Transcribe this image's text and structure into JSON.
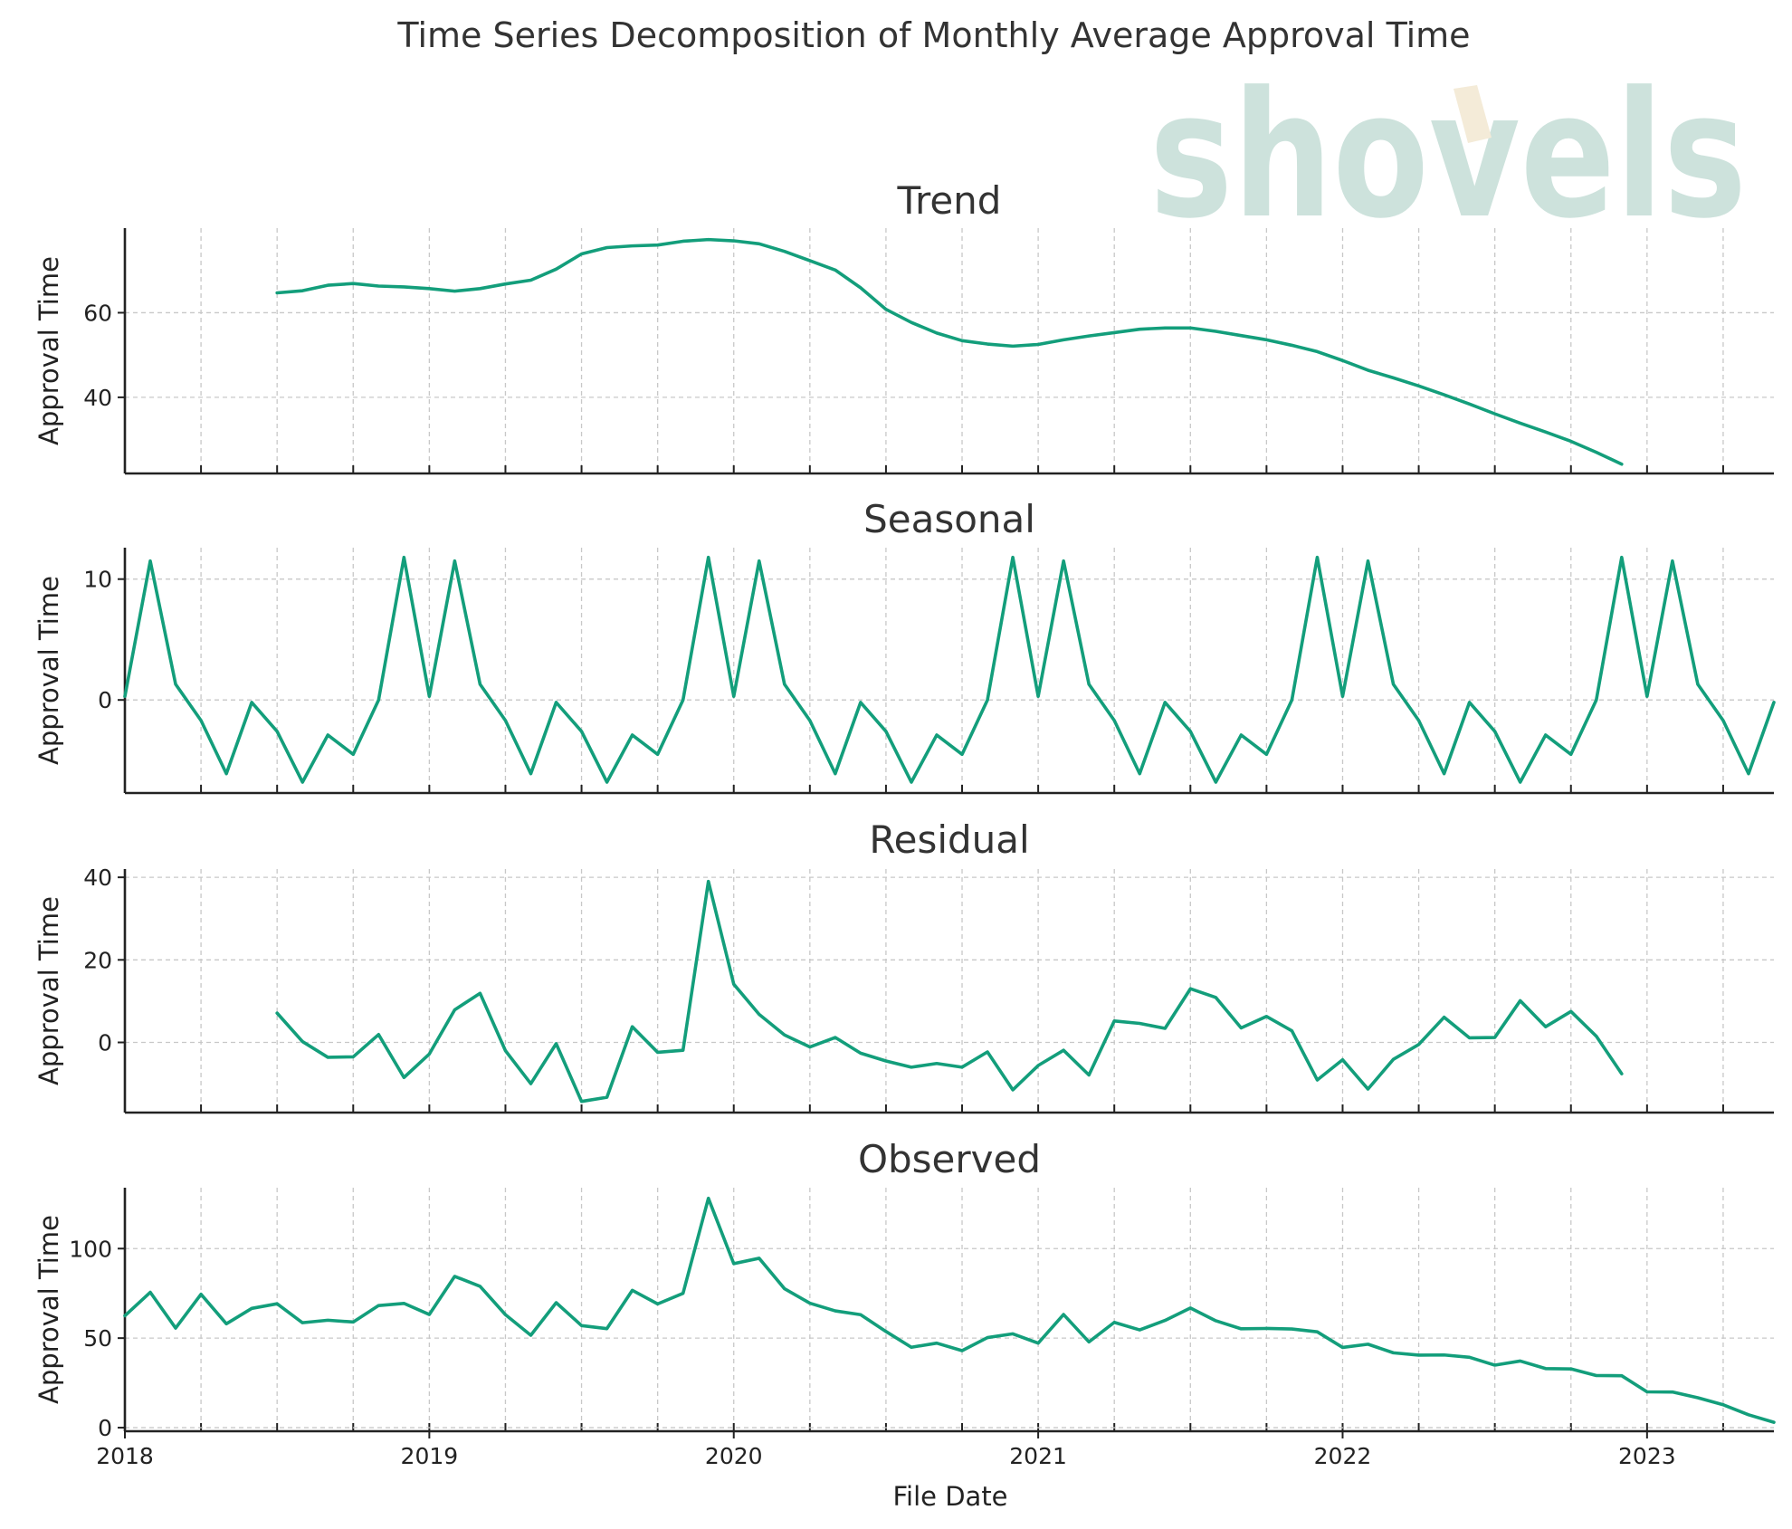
{
  "chart_data": {
    "type": "line",
    "title": "Time Series Decomposition of Monthly Average Approval Time",
    "xlabel": "File Date",
    "ylabel": "Approval Time",
    "line_color": "#139e7b",
    "watermark": {
      "text": "shovels",
      "color": "#cde2dc",
      "accent_color": "#f4ebd8"
    },
    "x_start": "2018-01",
    "xlim": [
      "2018-01",
      "2023-06"
    ],
    "x_ticks": [
      "2018",
      "2019",
      "2020",
      "2021",
      "2022",
      "2023"
    ],
    "grid": true,
    "panels": [
      {
        "title": "Trend",
        "ylabel": "Approval Time",
        "ylim": [
          22,
          80
        ],
        "yticks": [
          "40",
          "60"
        ],
        "x": [
          "2018-07",
          "2018-08",
          "2018-09",
          "2018-10",
          "2018-11",
          "2018-12",
          "2019-01",
          "2019-02",
          "2019-03",
          "2019-04",
          "2019-05",
          "2019-06",
          "2019-07",
          "2019-08",
          "2019-09",
          "2019-10",
          "2019-11",
          "2019-12",
          "2020-01",
          "2020-02",
          "2020-03",
          "2020-04",
          "2020-05",
          "2020-06",
          "2020-07",
          "2020-08",
          "2020-09",
          "2020-10",
          "2020-11",
          "2020-12",
          "2021-01",
          "2021-02",
          "2021-03",
          "2021-04",
          "2021-05",
          "2021-06",
          "2021-07",
          "2021-08",
          "2021-09",
          "2021-10",
          "2021-11",
          "2021-12",
          "2022-01",
          "2022-02",
          "2022-03",
          "2022-04",
          "2022-05",
          "2022-06",
          "2022-07",
          "2022-08",
          "2022-09",
          "2022-10",
          "2022-11",
          "2022-12"
        ],
        "values": [
          64.7,
          65.2,
          66.5,
          66.9,
          66.3,
          66.1,
          65.7,
          65.1,
          65.7,
          66.8,
          67.7,
          70.3,
          73.9,
          75.4,
          75.8,
          76.0,
          76.9,
          77.3,
          77.0,
          76.3,
          74.5,
          72.3,
          70.1,
          65.9,
          60.8,
          57.7,
          55.2,
          53.4,
          52.6,
          52.1,
          52.5,
          53.6,
          54.5,
          55.3,
          56.1,
          56.4,
          56.4,
          55.6,
          54.6,
          53.6,
          52.3,
          50.8,
          48.7,
          46.4,
          44.6,
          42.7,
          40.6,
          38.4,
          36.1,
          33.9,
          31.8,
          29.6,
          27.0,
          24.2
        ]
      },
      {
        "title": "Seasonal",
        "ylabel": "Approval Time",
        "ylim": [
          -7.7,
          12.6
        ],
        "yticks": [
          "0",
          "10"
        ],
        "x": [
          "2018-01",
          "2018-02",
          "2018-03",
          "2018-04",
          "2018-05",
          "2018-06",
          "2018-07",
          "2018-08",
          "2018-09",
          "2018-10",
          "2018-11",
          "2018-12",
          "2019-01",
          "2019-02",
          "2019-03",
          "2019-04",
          "2019-05",
          "2019-06",
          "2019-07",
          "2019-08",
          "2019-09",
          "2019-10",
          "2019-11",
          "2019-12",
          "2020-01",
          "2020-02",
          "2020-03",
          "2020-04",
          "2020-05",
          "2020-06",
          "2020-07",
          "2020-08",
          "2020-09",
          "2020-10",
          "2020-11",
          "2020-12",
          "2021-01",
          "2021-02",
          "2021-03",
          "2021-04",
          "2021-05",
          "2021-06",
          "2021-07",
          "2021-08",
          "2021-09",
          "2021-10",
          "2021-11",
          "2021-12",
          "2022-01",
          "2022-02",
          "2022-03",
          "2022-04",
          "2022-05",
          "2022-06",
          "2022-07",
          "2022-08",
          "2022-09",
          "2022-10",
          "2022-11",
          "2022-12",
          "2023-01",
          "2023-02",
          "2023-03",
          "2023-04",
          "2023-05",
          "2023-06"
        ],
        "values": [
          0.3,
          11.5,
          1.3,
          -1.7,
          -6.1,
          -0.2,
          -2.6,
          -6.8,
          -2.9,
          -4.5,
          0.0,
          11.8,
          0.3,
          11.5,
          1.3,
          -1.7,
          -6.1,
          -0.2,
          -2.6,
          -6.8,
          -2.9,
          -4.5,
          0.0,
          11.8,
          0.3,
          11.5,
          1.3,
          -1.7,
          -6.1,
          -0.2,
          -2.6,
          -6.8,
          -2.9,
          -4.5,
          0.0,
          11.8,
          0.3,
          11.5,
          1.3,
          -1.7,
          -6.1,
          -0.2,
          -2.6,
          -6.8,
          -2.9,
          -4.5,
          0.0,
          11.8,
          0.3,
          11.5,
          1.3,
          -1.7,
          -6.1,
          -0.2,
          -2.6,
          -6.8,
          -2.9,
          -4.5,
          0.0,
          11.8,
          0.3,
          11.5,
          1.3,
          -1.7,
          -6.1,
          -0.2
        ]
      },
      {
        "title": "Residual",
        "ylabel": "Approval Time",
        "ylim": [
          -17,
          42
        ],
        "yticks": [
          "0",
          "20",
          "40"
        ],
        "x": [
          "2018-07",
          "2018-08",
          "2018-09",
          "2018-10",
          "2018-11",
          "2018-12",
          "2019-01",
          "2019-02",
          "2019-03",
          "2019-04",
          "2019-05",
          "2019-06",
          "2019-07",
          "2019-08",
          "2019-09",
          "2019-10",
          "2019-11",
          "2019-12",
          "2020-01",
          "2020-02",
          "2020-03",
          "2020-04",
          "2020-05",
          "2020-06",
          "2020-07",
          "2020-08",
          "2020-09",
          "2020-10",
          "2020-11",
          "2020-12",
          "2021-01",
          "2021-02",
          "2021-03",
          "2021-04",
          "2021-05",
          "2021-06",
          "2021-07",
          "2021-08",
          "2021-09",
          "2021-10",
          "2021-11",
          "2021-12",
          "2022-01",
          "2022-02",
          "2022-03",
          "2022-04",
          "2022-05",
          "2022-06",
          "2022-07",
          "2022-08",
          "2022-09",
          "2022-10",
          "2022-11",
          "2022-12"
        ],
        "values": [
          7.1,
          0.2,
          -3.6,
          -3.5,
          1.9,
          -8.5,
          -2.8,
          7.9,
          11.9,
          -2.0,
          -10.0,
          -0.3,
          -14.3,
          -13.3,
          3.8,
          -2.4,
          -1.9,
          39.0,
          14.1,
          6.8,
          1.8,
          -1.1,
          1.2,
          -2.6,
          -4.5,
          -6.0,
          -5.1,
          -6.0,
          -2.3,
          -11.5,
          -5.6,
          -1.9,
          -7.9,
          5.2,
          4.6,
          3.4,
          13.0,
          10.9,
          3.5,
          6.3,
          2.8,
          -9.1,
          -4.2,
          -11.3,
          -4.1,
          -0.5,
          6.1,
          1.1,
          1.2,
          10.1,
          3.8,
          7.5,
          1.5,
          -7.6
        ]
      },
      {
        "title": "Observed",
        "ylabel": "Approval Time",
        "ylim": [
          -2,
          134
        ],
        "yticks": [
          "0",
          "50",
          "100"
        ],
        "x": [
          "2018-01",
          "2018-02",
          "2018-03",
          "2018-04",
          "2018-05",
          "2018-06",
          "2018-07",
          "2018-08",
          "2018-09",
          "2018-10",
          "2018-11",
          "2018-12",
          "2019-01",
          "2019-02",
          "2019-03",
          "2019-04",
          "2019-05",
          "2019-06",
          "2019-07",
          "2019-08",
          "2019-09",
          "2019-10",
          "2019-11",
          "2019-12",
          "2020-01",
          "2020-02",
          "2020-03",
          "2020-04",
          "2020-05",
          "2020-06",
          "2020-07",
          "2020-08",
          "2020-09",
          "2020-10",
          "2020-11",
          "2020-12",
          "2021-01",
          "2021-02",
          "2021-03",
          "2021-04",
          "2021-05",
          "2021-06",
          "2021-07",
          "2021-08",
          "2021-09",
          "2021-10",
          "2021-11",
          "2021-12",
          "2022-01",
          "2022-02",
          "2022-03",
          "2022-04",
          "2022-05",
          "2022-06",
          "2022-07",
          "2022-08",
          "2022-09",
          "2022-10",
          "2022-11",
          "2022-12",
          "2023-01",
          "2023-02",
          "2023-03",
          "2023-04",
          "2023-05",
          "2023-06"
        ],
        "values": [
          62.5,
          75.6,
          55.6,
          74.5,
          58.0,
          66.6,
          69.2,
          58.6,
          60.0,
          59.0,
          68.2,
          69.4,
          63.2,
          84.5,
          78.9,
          63.1,
          51.6,
          69.8,
          57.0,
          55.3,
          76.7,
          69.1,
          75.0,
          128.1,
          91.6,
          94.6,
          77.6,
          69.5,
          65.2,
          63.1,
          53.7,
          44.9,
          47.2,
          43.0,
          50.3,
          52.4,
          47.2,
          63.2,
          47.9,
          58.8,
          54.6,
          59.9,
          66.8,
          59.7,
          55.2,
          55.4,
          55.1,
          53.5,
          44.8,
          46.6,
          41.8,
          40.5,
          40.6,
          39.3,
          34.9,
          37.2,
          33.0,
          32.8,
          29.1,
          29.0,
          20.0,
          19.9,
          16.7,
          12.8,
          7.2,
          3.0
        ]
      }
    ]
  }
}
